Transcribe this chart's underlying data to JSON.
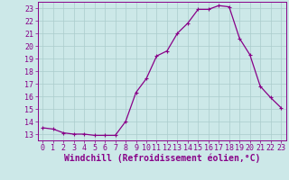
{
  "x": [
    0,
    1,
    2,
    3,
    4,
    5,
    6,
    7,
    8,
    9,
    10,
    11,
    12,
    13,
    14,
    15,
    16,
    17,
    18,
    19,
    20,
    21,
    22,
    23
  ],
  "y": [
    13.5,
    13.4,
    13.1,
    13.0,
    13.0,
    12.9,
    12.9,
    12.9,
    14.0,
    16.3,
    17.4,
    19.2,
    19.6,
    21.0,
    21.8,
    22.9,
    22.9,
    23.2,
    23.1,
    20.6,
    19.3,
    16.8,
    15.9,
    15.1
  ],
  "line_color": "#880088",
  "marker": "P",
  "marker_size": 2.5,
  "bg_color": "#cce8e8",
  "grid_color": "#aacccc",
  "xlabel": "Windchill (Refroidissement éolien,°C)",
  "xlim": [
    -0.5,
    23.5
  ],
  "ylim": [
    12.5,
    23.5
  ],
  "yticks": [
    13,
    14,
    15,
    16,
    17,
    18,
    19,
    20,
    21,
    22,
    23
  ],
  "xticks": [
    0,
    1,
    2,
    3,
    4,
    5,
    6,
    7,
    8,
    9,
    10,
    11,
    12,
    13,
    14,
    15,
    16,
    17,
    18,
    19,
    20,
    21,
    22,
    23
  ],
  "tick_color": "#880088",
  "label_color": "#880088",
  "xlabel_fontsize": 7,
  "tick_fontsize": 6,
  "spine_color": "#880088",
  "linewidth": 0.9
}
